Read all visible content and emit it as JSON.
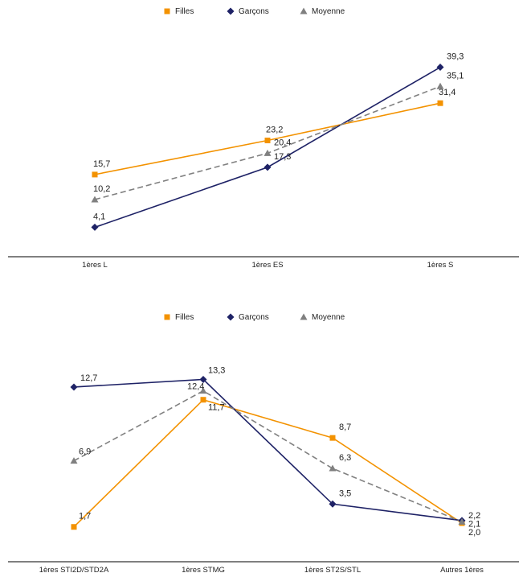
{
  "colors": {
    "Filles": "#F39200",
    "Garçons": "#1E2266",
    "Moyenne": "#808080",
    "axis": "#000000"
  },
  "chart_data": [
    {
      "type": "line",
      "categories": [
        "1ères L",
        "1ères ES",
        "1ères S"
      ],
      "series": [
        {
          "name": "Filles",
          "values": [
            15.7,
            23.2,
            31.4
          ],
          "labels": [
            "15,7",
            "23,2",
            "31,4"
          ],
          "marker": "square",
          "dash": false
        },
        {
          "name": "Garçons",
          "values": [
            4.1,
            17.3,
            39.3
          ],
          "labels": [
            "4,1",
            "17,3",
            "39,3"
          ],
          "marker": "diamond",
          "dash": false
        },
        {
          "name": "Moyenne",
          "values": [
            10.2,
            20.4,
            35.1
          ],
          "labels": [
            "10,2",
            "20,4",
            "35,1"
          ],
          "marker": "triangle",
          "dash": true
        }
      ],
      "legend": "top-center",
      "grid": false,
      "ylim": [
        0,
        45
      ]
    },
    {
      "type": "line",
      "categories": [
        "1ères STI2D/STD2A",
        "1ères STMG",
        "1ères ST2S/STL",
        "Autres 1ères"
      ],
      "series": [
        {
          "name": "Filles",
          "values": [
            1.7,
            11.7,
            8.7,
            2.0
          ],
          "labels": [
            "1,7",
            "11,7",
            "8,7",
            "2,0"
          ],
          "marker": "square",
          "dash": false
        },
        {
          "name": "Garçons",
          "values": [
            12.7,
            13.3,
            3.5,
            2.2
          ],
          "labels": [
            "12,7",
            "13,3",
            "3,5",
            "2,2"
          ],
          "marker": "diamond",
          "dash": false
        },
        {
          "name": "Moyenne",
          "values": [
            6.9,
            12.4,
            6.3,
            2.1
          ],
          "labels": [
            "6,9",
            "12,4",
            "6,3",
            "2,1"
          ],
          "marker": "triangle",
          "dash": true
        }
      ],
      "legend": "top-center",
      "grid": false,
      "ylim": [
        0,
        15
      ]
    }
  ]
}
